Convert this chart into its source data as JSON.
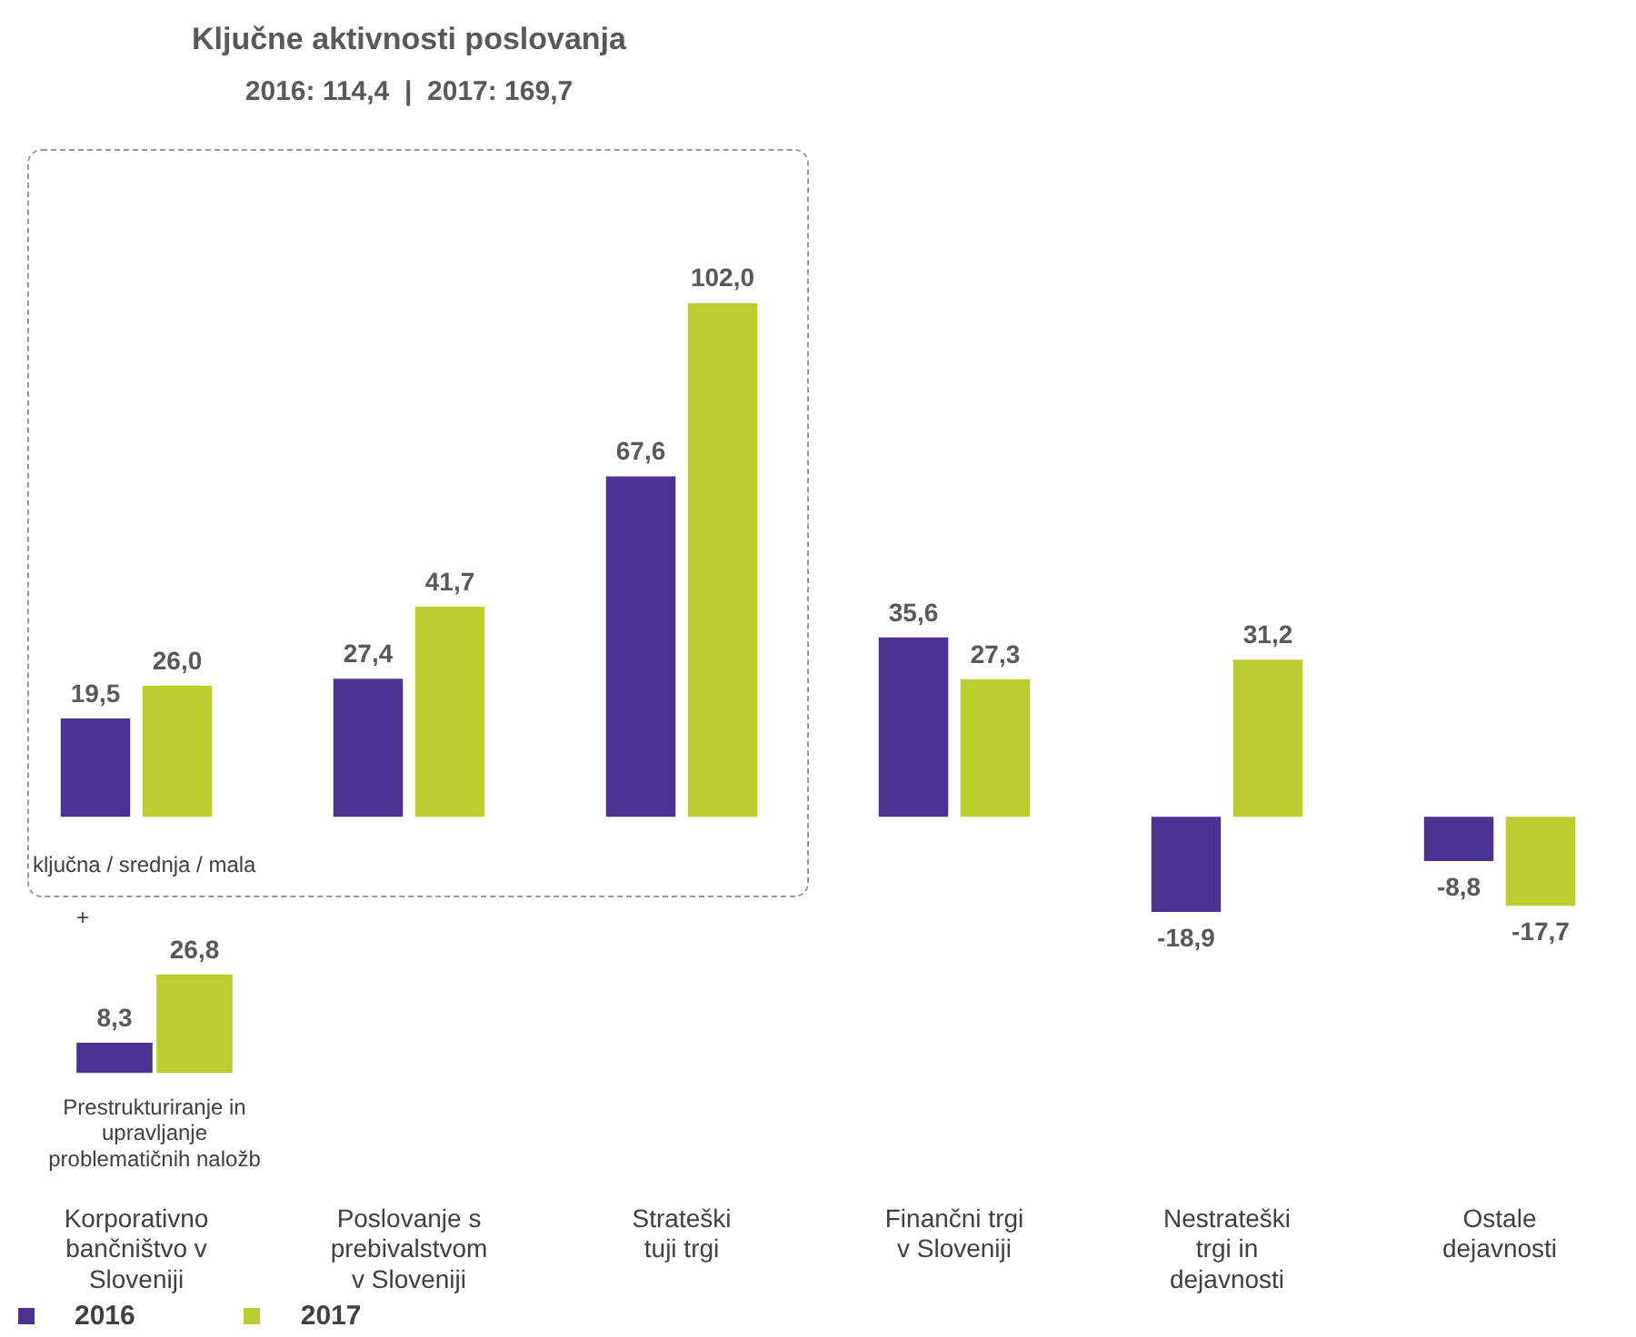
{
  "chart_data": [
    {
      "type": "bar",
      "title": "Ključne aktivnosti poslovanja",
      "subtitle": "2016: 114,4  |  2017: 169,7",
      "categories": [
        "Korporativno bančništvo v Sloveniji",
        "Poslovanje s prebivalstvom v Sloveniji",
        "Strateški tuji trgi",
        "Finančni trgi v Sloveniji",
        "Nestrateški trgi in dejavnosti",
        "Ostale dejavnosti"
      ],
      "series": [
        {
          "name": "2016",
          "color": "#4b3190",
          "values": [
            19.5,
            27.4,
            67.6,
            35.6,
            -18.9,
            -8.8
          ],
          "value_labels": [
            "19,5",
            "27,4",
            "67,6",
            "35,6",
            "-18,9",
            "-8,8"
          ]
        },
        {
          "name": "2017",
          "color": "#bccd2f",
          "values": [
            26.0,
            41.7,
            102.0,
            27.3,
            31.2,
            -17.7
          ],
          "value_labels": [
            "26,0",
            "41,7",
            "102,0",
            "27,3",
            "31,2",
            "-17,7"
          ]
        }
      ],
      "legend": "bottom left",
      "annotations": [
        "ključna / srednja / mala",
        "+"
      ]
    },
    {
      "type": "bar",
      "categories": [
        "Prestrukturiranje in upravljanje problematičnih naložb"
      ],
      "series": [
        {
          "color": "#4b3190",
          "values": [
            8.3
          ],
          "value_labels": [
            "8,3"
          ]
        },
        {
          "color": "#bccd2f",
          "values": [
            26.8
          ],
          "value_labels": [
            "26,8"
          ]
        }
      ]
    }
  ]
}
